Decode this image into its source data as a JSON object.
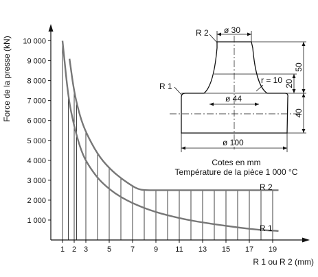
{
  "chart_data": {
    "type": "line",
    "title": "",
    "ylabel": "Force de la presse (kN)",
    "xlabel": "R 1 ou R 2 (mm)",
    "ylim": [
      0,
      10500
    ],
    "xlim": [
      0,
      21
    ],
    "x_ticks": [
      1,
      2,
      3,
      5,
      7,
      9,
      11,
      13,
      15,
      17,
      19
    ],
    "y_ticks": [
      {
        "value": 1000,
        "label": "1 000"
      },
      {
        "value": 2000,
        "label": "2 000"
      },
      {
        "value": 3000,
        "label": "3 000"
      },
      {
        "value": 4000,
        "label": "4 000"
      },
      {
        "value": 5000,
        "label": "5 000"
      },
      {
        "value": 6000,
        "label": "6 000"
      },
      {
        "value": 7000,
        "label": "7 000"
      },
      {
        "value": 8000,
        "label": "8 000"
      },
      {
        "value": 9000,
        "label": "9 000"
      },
      {
        "value": 10000,
        "label": "10 000"
      }
    ],
    "grid_lines_x": [
      1,
      1.5,
      2,
      2.2,
      3,
      4,
      5,
      6,
      7,
      8,
      9,
      10,
      11,
      12,
      13,
      14,
      15,
      16,
      17,
      18,
      19
    ],
    "series": [
      {
        "name": "R 1",
        "x": [
          1,
          1.5,
          2,
          2.5,
          3,
          4,
          5,
          6,
          7,
          8,
          9,
          10,
          11,
          12,
          13,
          14,
          15,
          16,
          17,
          18,
          19,
          19.5
        ],
        "values": [
          10000,
          7100,
          5700,
          4650,
          3950,
          3100,
          2550,
          2150,
          1850,
          1600,
          1400,
          1240,
          1100,
          980,
          880,
          790,
          710,
          630,
          560,
          500,
          470,
          450
        ]
      },
      {
        "name": "R 2",
        "x": [
          1.6,
          2,
          2.5,
          3,
          4,
          5,
          6,
          7,
          7.5,
          8,
          9,
          10,
          11,
          12,
          13,
          14,
          15,
          16,
          17,
          18,
          19,
          19.5
        ],
        "values": [
          9100,
          7400,
          6200,
          5400,
          4300,
          3600,
          3100,
          2700,
          2550,
          2500,
          2500,
          2500,
          2500,
          2500,
          2500,
          2500,
          2500,
          2500,
          2500,
          2500,
          2500,
          2500
        ]
      }
    ],
    "inset": {
      "labels": {
        "r2": "R 2",
        "r1": "R 1",
        "d30": "ø 30",
        "d44": "ø 44",
        "d100": "ø 100",
        "r10": "r = 10",
        "h50": "50",
        "h20": "20",
        "h40": "40"
      },
      "caption_line1": "Cotes en mm",
      "caption_line2": "Température de la pièce 1 000 °C"
    }
  }
}
